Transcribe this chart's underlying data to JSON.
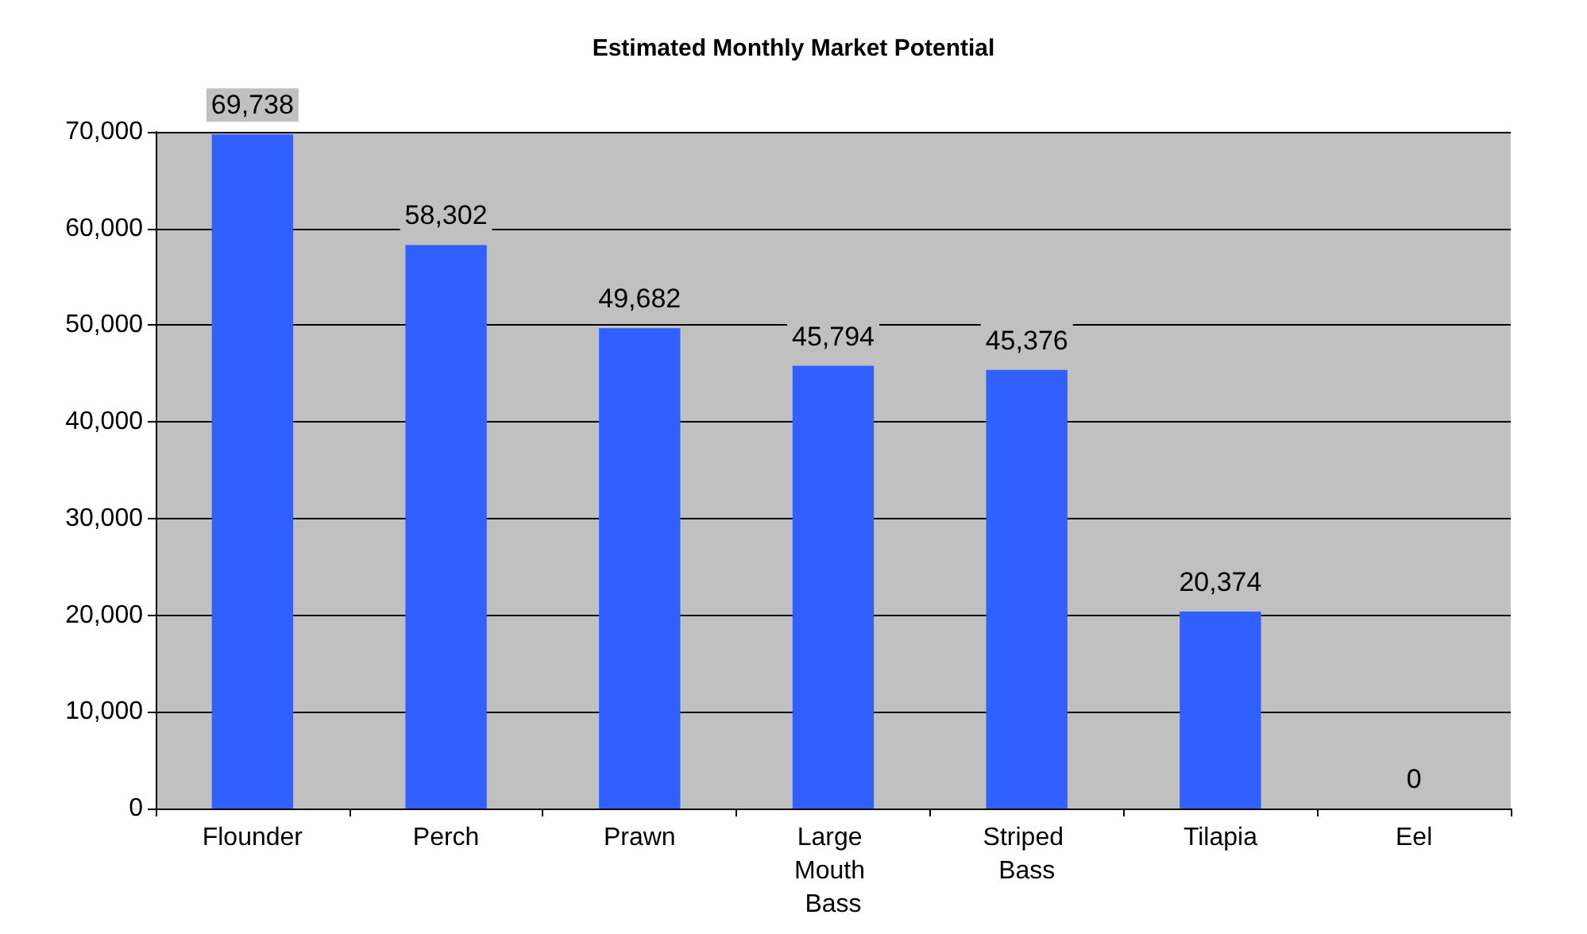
{
  "chart_data": {
    "type": "bar",
    "title": "Estimated Monthly Market Potential",
    "categories": [
      "Flounder",
      "Perch",
      "Prawn",
      "Large Mouth Bass",
      "Striped Bass",
      "Tilapia",
      "Eel"
    ],
    "values": [
      69738,
      58302,
      49682,
      45794,
      45376,
      20374,
      0
    ],
    "value_labels": [
      "69,738",
      "58,302",
      "49,682",
      "45,794",
      "45,376",
      "20,374",
      "0"
    ],
    "color": "#3060ff",
    "ylim": [
      0,
      70000
    ],
    "yticks": [
      {
        "value": 0,
        "label": "0"
      },
      {
        "value": 10000,
        "label": "10,000"
      },
      {
        "value": 20000,
        "label": "20,000"
      },
      {
        "value": 30000,
        "label": "30,000"
      },
      {
        "value": 40000,
        "label": "40,000"
      },
      {
        "value": 50000,
        "label": "50,000"
      },
      {
        "value": 60000,
        "label": "60,000"
      },
      {
        "value": 70000,
        "label": "70,000"
      }
    ],
    "grid": "y"
  }
}
